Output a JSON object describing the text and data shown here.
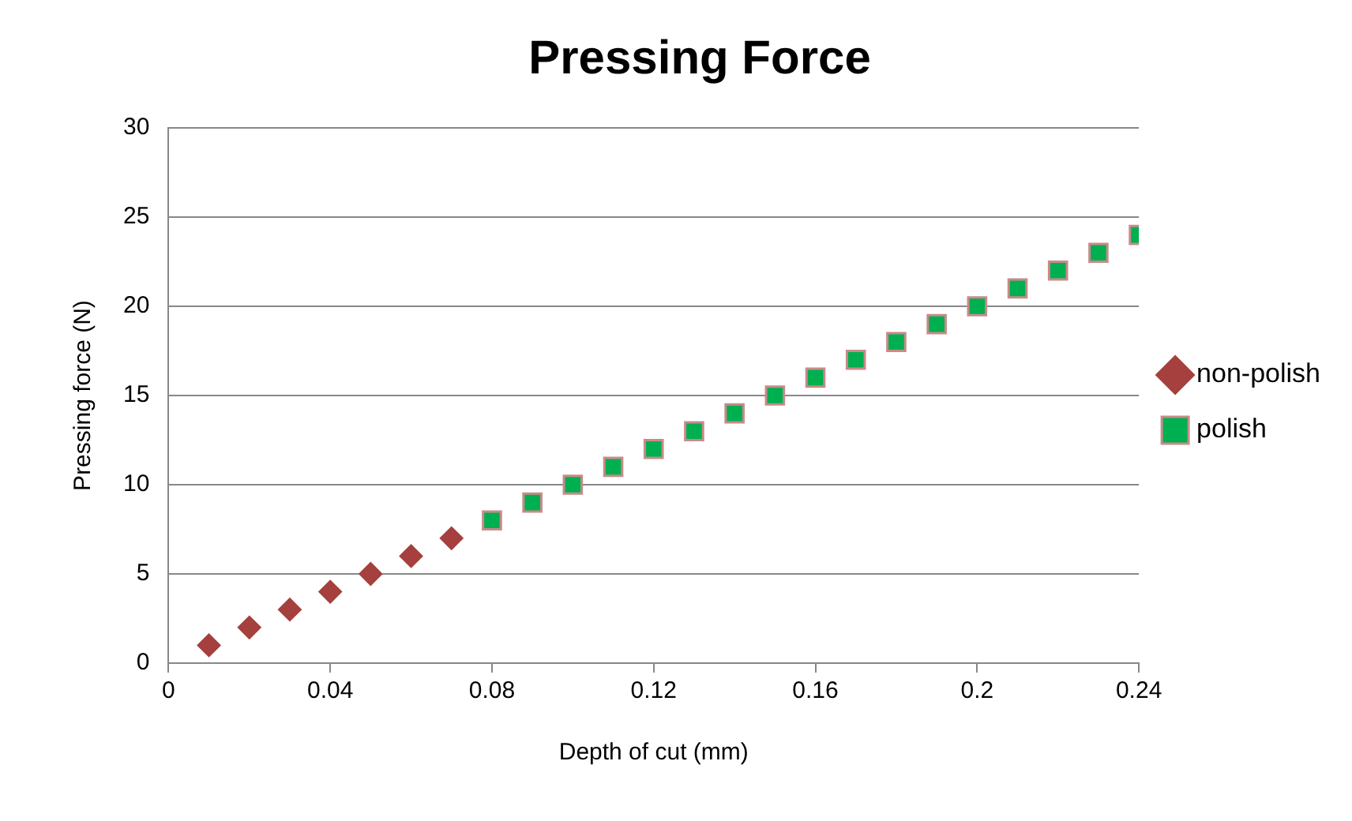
{
  "chart_data": {
    "type": "scatter",
    "title": "Pressing Force",
    "xlabel": "Depth of cut (mm)",
    "ylabel": "Pressing force (N)",
    "xlim": [
      0,
      0.24
    ],
    "xticks": [
      0,
      0.04,
      0.08,
      0.12,
      0.16,
      0.2,
      0.24
    ],
    "ylim": [
      0,
      30
    ],
    "yticks": [
      0,
      5,
      10,
      15,
      20,
      25,
      30
    ],
    "grid": "y",
    "legend": "right",
    "series": [
      {
        "name": "non-polish",
        "color": "#a5403e",
        "marker": "diamond",
        "x": [
          0.01,
          0.02,
          0.03,
          0.04,
          0.05,
          0.06,
          0.07
        ],
        "values": [
          1,
          2,
          3,
          4,
          5,
          6,
          7
        ]
      },
      {
        "name": "polish",
        "color": "#00b050",
        "marker": "square",
        "x": [
          0.08,
          0.09,
          0.1,
          0.11,
          0.12,
          0.13,
          0.14,
          0.15,
          0.16,
          0.17,
          0.18,
          0.19,
          0.2,
          0.21,
          0.22,
          0.23,
          0.24
        ],
        "values": [
          8,
          9,
          10,
          11,
          12,
          13,
          14,
          15,
          16,
          17,
          18,
          19,
          20,
          21,
          22,
          23,
          24
        ]
      }
    ]
  }
}
